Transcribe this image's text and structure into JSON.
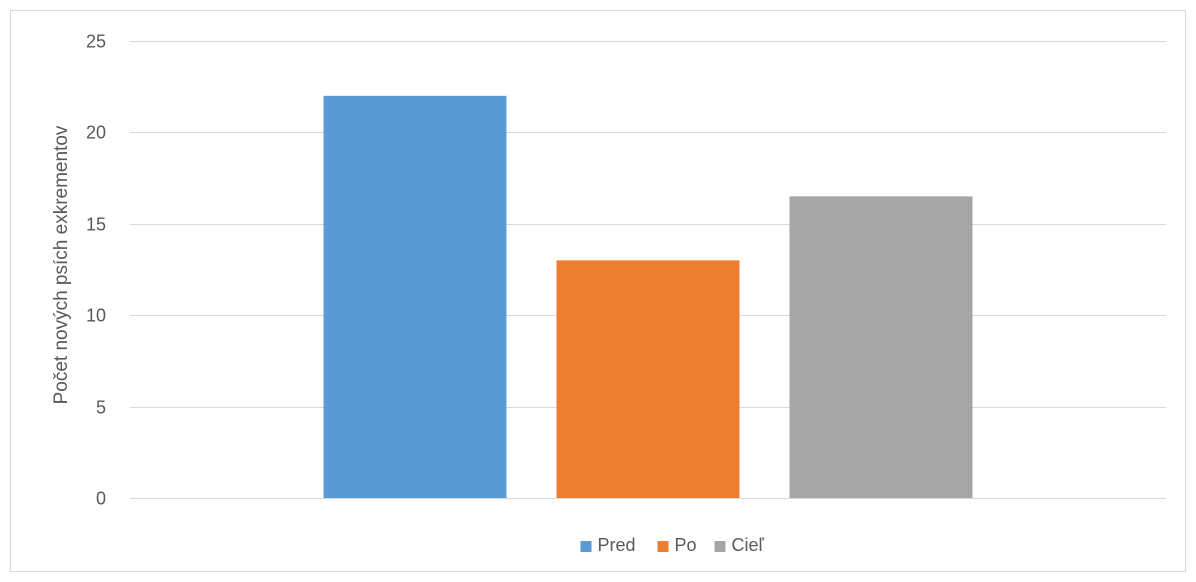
{
  "chart_data": {
    "type": "bar",
    "title": "",
    "xlabel": "",
    "ylabel": "Počet nových psích exkrementov",
    "ylim": [
      0,
      25
    ],
    "yticks": [
      0,
      5,
      10,
      15,
      20,
      25
    ],
    "grid": true,
    "legend_position": "bottom",
    "series": [
      {
        "name": "Pred",
        "values": [
          22
        ],
        "color": "#5b9bd5"
      },
      {
        "name": "Po",
        "values": [
          13
        ],
        "color": "#ed7d31"
      },
      {
        "name": "Cieľ",
        "values": [
          16.5
        ],
        "color": "#a5a5a5"
      }
    ]
  }
}
